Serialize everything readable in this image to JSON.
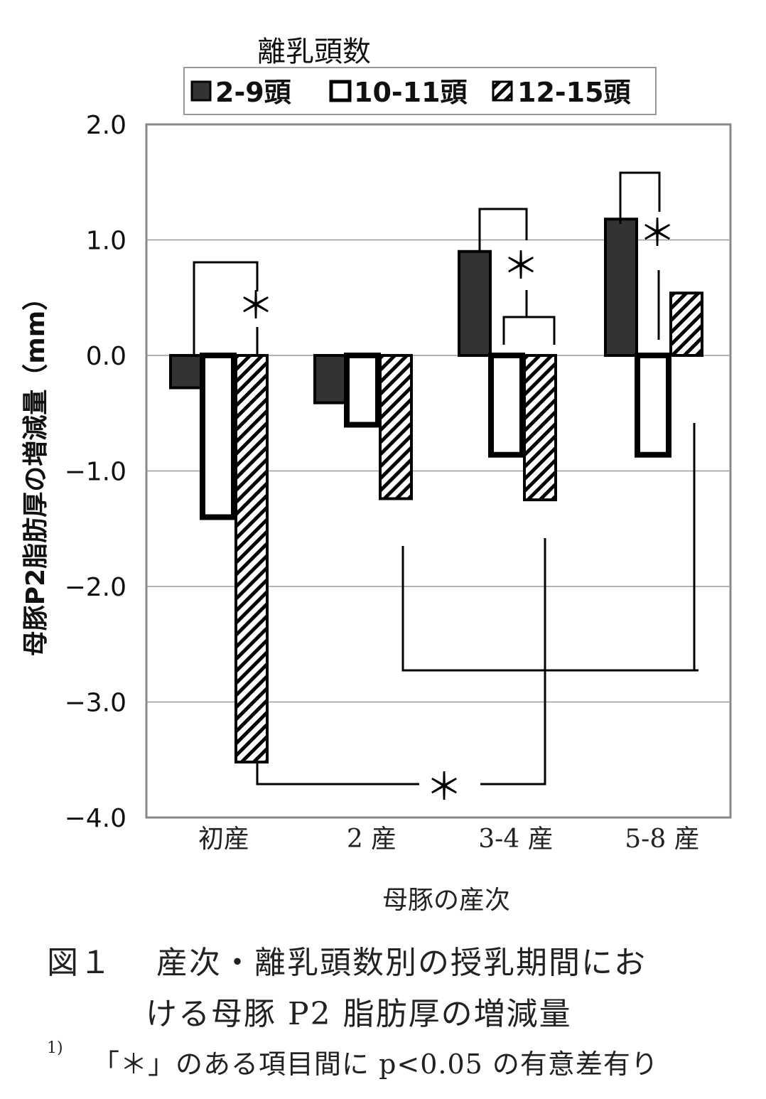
{
  "chart_data": {
    "type": "bar",
    "legend_title": "離乳頭数",
    "legend_placement": "top",
    "categories": [
      "初産",
      "2 産",
      "3-4 産",
      "5-8 産"
    ],
    "series": [
      {
        "name": "2-9頭",
        "style": "solid-dark",
        "color": "#333333",
        "values": [
          -0.28,
          -0.41,
          0.9,
          1.18
        ]
      },
      {
        "name": "10-11頭",
        "style": "white",
        "color": "#ffffff",
        "values": [
          -1.4,
          -0.6,
          -0.86,
          -0.86
        ]
      },
      {
        "name": "12-15頭",
        "style": "hatched",
        "color": "#000000",
        "values": [
          -3.52,
          -1.24,
          -1.25,
          0.54
        ]
      }
    ],
    "ylabel": "母豚P2脂肪厚の増減量（mm）",
    "xlabel": "母豚の産次",
    "ylim": [
      -4.0,
      2.0
    ],
    "yticks": [
      "2.0",
      "1.0",
      "0.0",
      "−1.0",
      "−2.0",
      "−3.0",
      "−4.0"
    ],
    "ytick_values": [
      2,
      1,
      0,
      -1,
      -2,
      -3,
      -4
    ],
    "grid": true,
    "significance_mark": "＊"
  },
  "caption": {
    "line1": "図１　 産次・離乳頭数別の授乳期間にお",
    "line2": "ける母豚 P2 脂肪厚の増減量",
    "note_marker": "1)",
    "note": "「＊」のある項目間に p<0.05 の有意差有り"
  }
}
